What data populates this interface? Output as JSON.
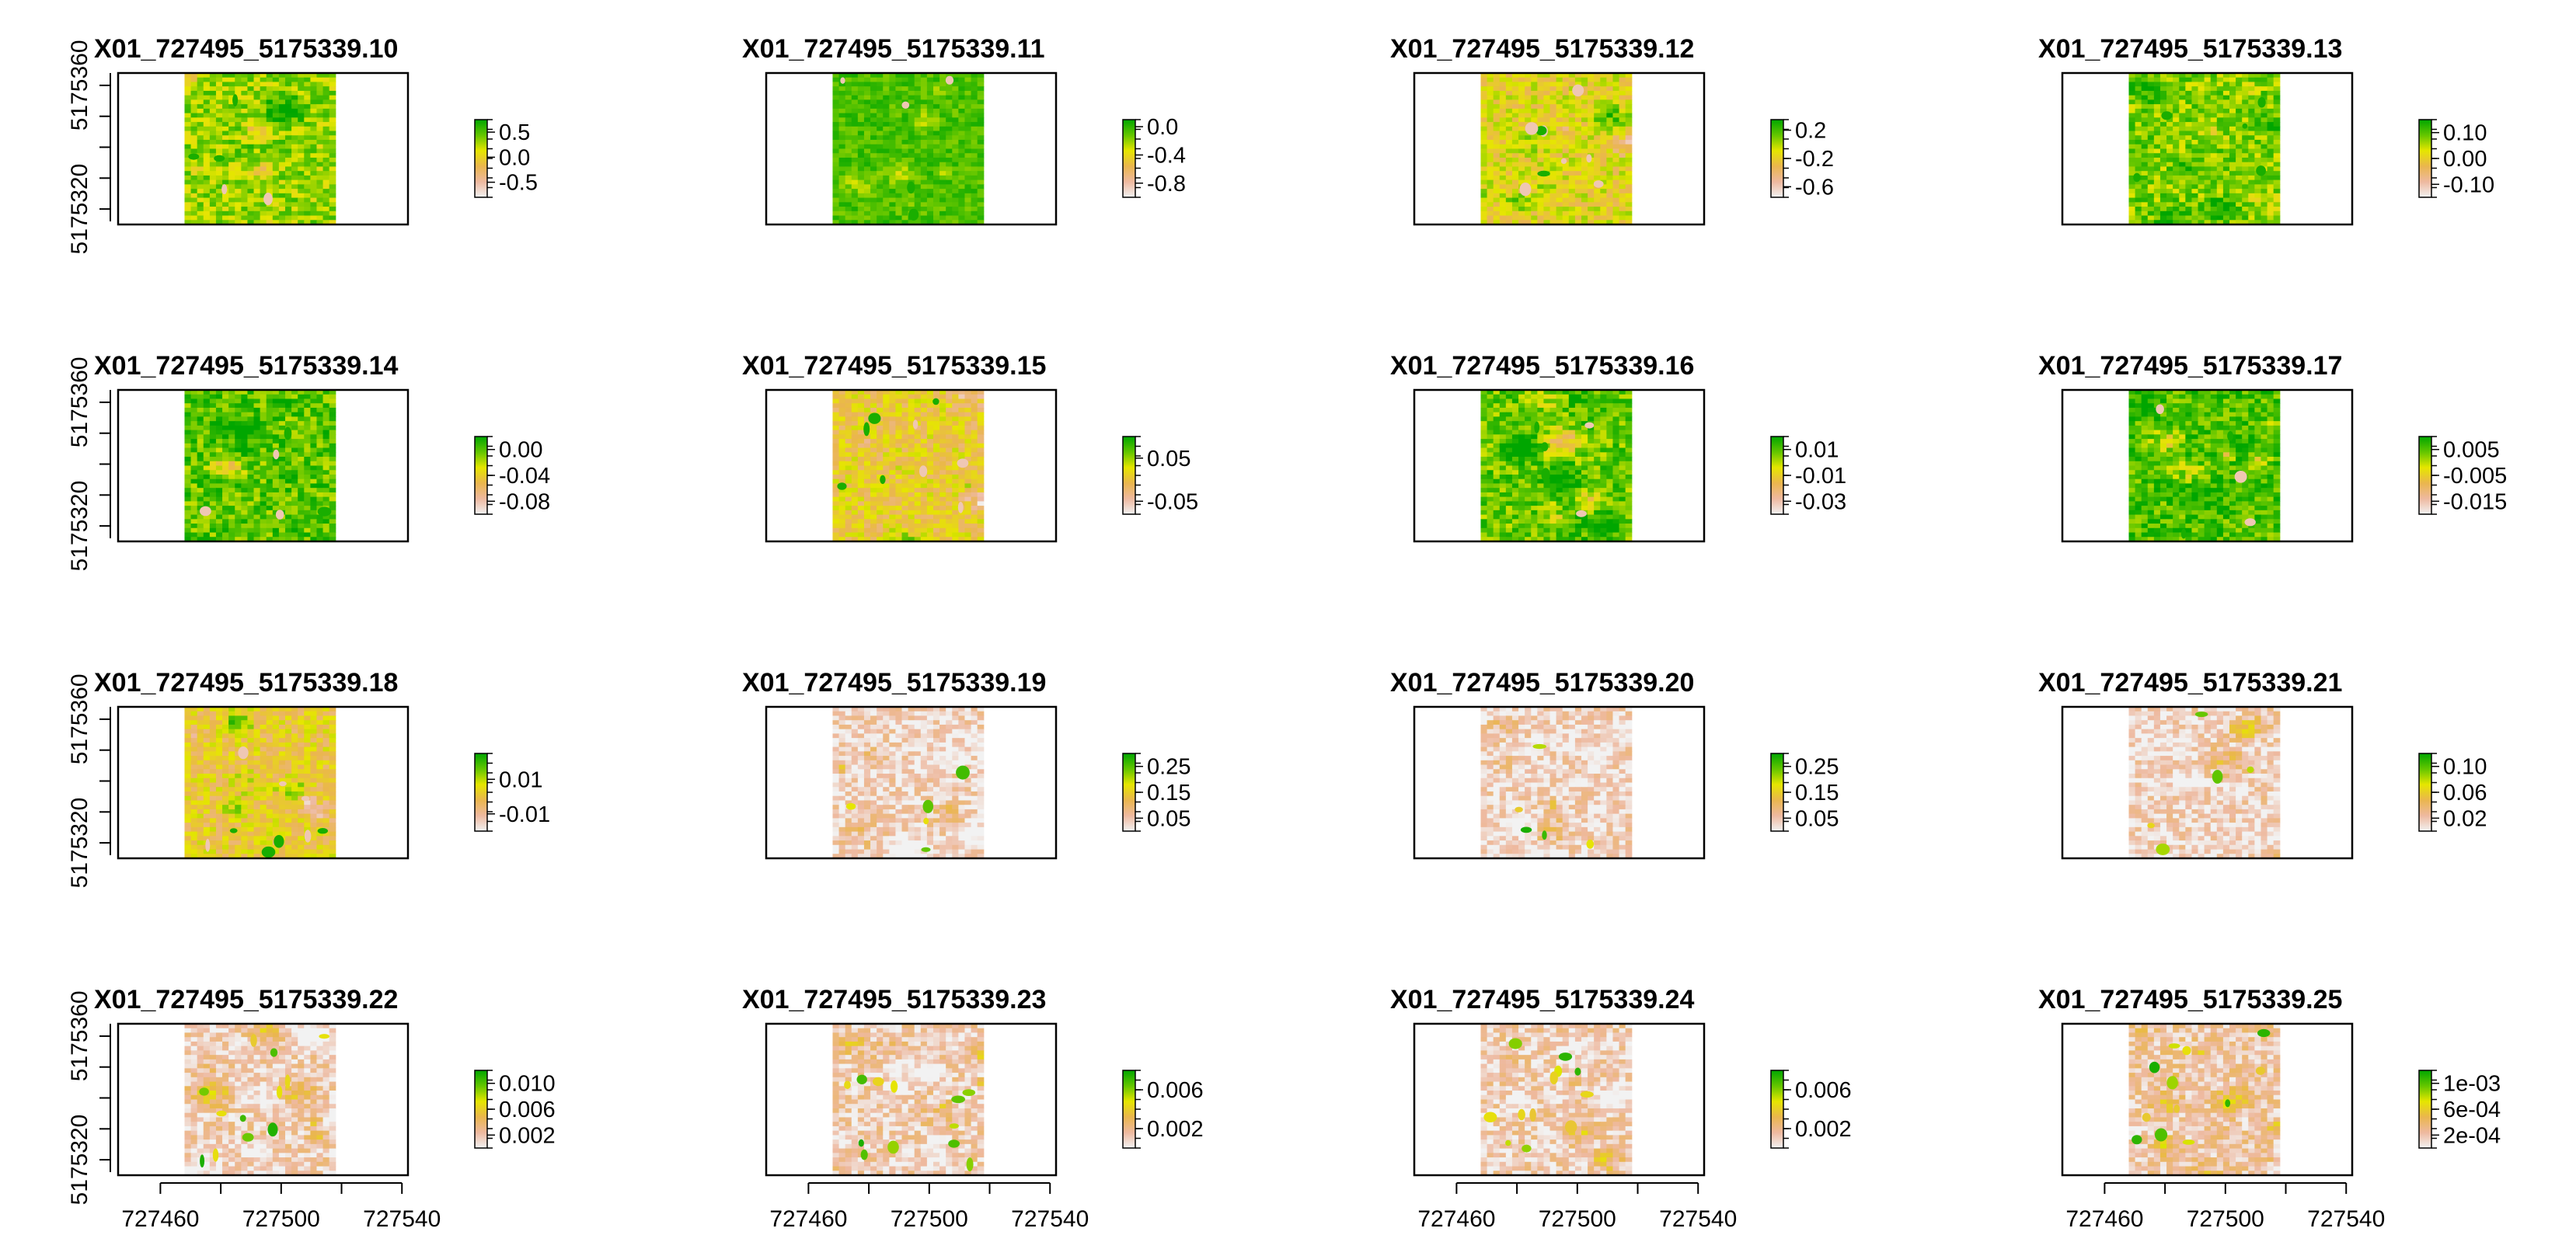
{
  "colors": {
    "ramp": [
      "#F2F2F2",
      "#EEB99F",
      "#EAB64E",
      "#E6E600",
      "#63C600",
      "#00A600"
    ],
    "frame": "#000000",
    "background": "#FFFFFF"
  },
  "chart_data": {
    "type": "heatmap",
    "layout": "4x4 grid of raster panels, each with a color-scale legend",
    "x_axis": {
      "ticks": [
        "727460",
        "727500",
        "727540"
      ],
      "tick_values": [
        727460,
        727500,
        727540
      ],
      "xlim": [
        727446,
        727542
      ]
    },
    "y_axis": {
      "ticks": [
        "5175320",
        "5175360"
      ],
      "tick_values": [
        5175320,
        5175360
      ],
      "ylim": [
        5175315,
        5175364
      ]
    },
    "raster_extent": {
      "x": [
        727468,
        727518
      ],
      "y": [
        5175315,
        5175364
      ]
    },
    "panels": [
      {
        "title": "X01_727495_5175339.10",
        "legend_ticks": [
          "0.5",
          "0.0",
          "-0.5"
        ],
        "legend_values": [
          0.5,
          0.0,
          -0.5
        ],
        "range": [
          -0.8,
          0.75
        ],
        "pattern": "mottled",
        "bias": 0.72
      },
      {
        "title": "X01_727495_5175339.11",
        "legend_ticks": [
          "0.0",
          "-0.4",
          "-0.8"
        ],
        "legend_values": [
          0.0,
          -0.4,
          -0.8
        ],
        "range": [
          -1.0,
          0.1
        ],
        "pattern": "fine",
        "bias": 0.95
      },
      {
        "title": "X01_727495_5175339.12",
        "legend_ticks": [
          "0.2",
          "-0.2",
          "-0.6"
        ],
        "legend_values": [
          0.2,
          -0.2,
          -0.6
        ],
        "range": [
          -0.75,
          0.35
        ],
        "pattern": "spots",
        "bias": 0.55
      },
      {
        "title": "X01_727495_5175339.13",
        "legend_ticks": [
          "0.10",
          "0.00",
          "-0.10"
        ],
        "legend_values": [
          0.1,
          0.0,
          -0.1
        ],
        "range": [
          -0.15,
          0.15
        ],
        "pattern": "mottled",
        "bias": 0.76
      },
      {
        "title": "X01_727495_5175339.14",
        "legend_ticks": [
          "0.00",
          "-0.04",
          "-0.08"
        ],
        "legend_values": [
          0.0,
          -0.04,
          -0.08
        ],
        "range": [
          -0.1,
          0.02
        ],
        "pattern": "mottled",
        "bias": 0.82
      },
      {
        "title": "X01_727495_5175339.15",
        "legend_ticks": [
          "0.05",
          "-0.05"
        ],
        "legend_values": [
          0.05,
          -0.05
        ],
        "range": [
          -0.08,
          0.1
        ],
        "pattern": "spots",
        "bias": 0.48
      },
      {
        "title": "X01_727495_5175339.16",
        "legend_ticks": [
          "0.01",
          "-0.01",
          "-0.03"
        ],
        "legend_values": [
          0.01,
          -0.01,
          -0.03
        ],
        "range": [
          -0.04,
          0.02
        ],
        "pattern": "blobs",
        "bias": 0.8
      },
      {
        "title": "X01_727495_5175339.17",
        "legend_ticks": [
          "0.005",
          "-0.005",
          "-0.015"
        ],
        "legend_values": [
          0.005,
          -0.005,
          -0.015
        ],
        "range": [
          -0.02,
          0.01
        ],
        "pattern": "blobs",
        "bias": 0.85
      },
      {
        "title": "X01_727495_5175339.18",
        "legend_ticks": [
          "0.01",
          "-0.01"
        ],
        "legend_values": [
          0.01,
          -0.01
        ],
        "range": [
          -0.02,
          0.025
        ],
        "pattern": "spots",
        "bias": 0.47
      },
      {
        "title": "X01_727495_5175339.19",
        "legend_ticks": [
          "0.25",
          "0.15",
          "0.05"
        ],
        "legend_values": [
          0.25,
          0.15,
          0.05
        ],
        "range": [
          0.0,
          0.3
        ],
        "pattern": "speckle",
        "bias": 0.1
      },
      {
        "title": "X01_727495_5175339.20",
        "legend_ticks": [
          "0.25",
          "0.15",
          "0.05"
        ],
        "legend_values": [
          0.25,
          0.15,
          0.05
        ],
        "range": [
          0.0,
          0.3
        ],
        "pattern": "speckle",
        "bias": 0.1
      },
      {
        "title": "X01_727495_5175339.21",
        "legend_ticks": [
          "0.10",
          "0.06",
          "0.02"
        ],
        "legend_values": [
          0.1,
          0.06,
          0.02
        ],
        "range": [
          0.0,
          0.12
        ],
        "pattern": "speckle",
        "bias": 0.1
      },
      {
        "title": "X01_727495_5175339.22",
        "legend_ticks": [
          "0.010",
          "0.006",
          "0.002"
        ],
        "legend_values": [
          0.01,
          0.006,
          0.002
        ],
        "range": [
          0.0,
          0.012
        ],
        "pattern": "sparse",
        "bias": 0.14
      },
      {
        "title": "X01_727495_5175339.23",
        "legend_ticks": [
          "0.006",
          "0.002"
        ],
        "legend_values": [
          0.006,
          0.002
        ],
        "range": [
          0.0,
          0.008
        ],
        "pattern": "sparse",
        "bias": 0.14
      },
      {
        "title": "X01_727495_5175339.24",
        "legend_ticks": [
          "0.006",
          "0.002"
        ],
        "legend_values": [
          0.006,
          0.002
        ],
        "range": [
          0.0,
          0.008
        ],
        "pattern": "sparse",
        "bias": 0.14
      },
      {
        "title": "X01_727495_5175339.25",
        "legend_ticks": [
          "1e-03",
          "6e-04",
          "2e-04"
        ],
        "legend_values": [
          0.001,
          0.0006,
          0.0002
        ],
        "range": [
          0.0,
          0.0012
        ],
        "pattern": "sparse",
        "bias": 0.18
      }
    ]
  }
}
